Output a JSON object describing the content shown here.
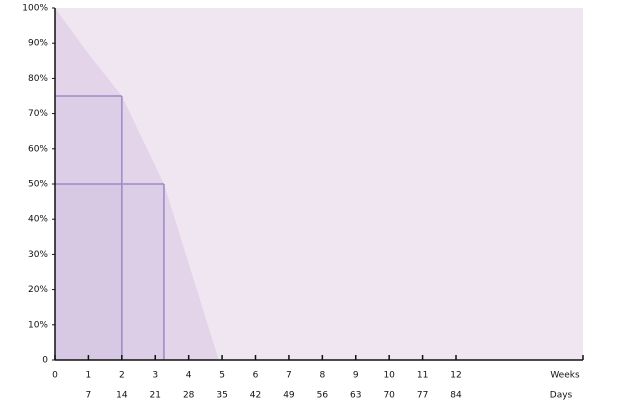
{
  "chart_data": {
    "type": "area",
    "x": [
      0,
      1,
      2,
      3.26,
      4.9
    ],
    "values": [
      100,
      87,
      75,
      50,
      0
    ],
    "color": "#e3d4ea",
    "background": "#efe6f1",
    "reference_points": [
      {
        "x": 2,
        "y": 75
      },
      {
        "x": 3.26,
        "y": 50
      }
    ],
    "reference_color": "#9d88c6",
    "xlim": [
      0,
      15.8
    ],
    "xticks": [
      0,
      1,
      2,
      3,
      4,
      5,
      6,
      7,
      8,
      9,
      10,
      11,
      12
    ],
    "xlabel": "Weeks",
    "x2lim": [
      0,
      110.6
    ],
    "x2ticks": [
      7,
      14,
      21,
      28,
      35,
      42,
      49,
      56,
      63,
      70,
      77,
      84
    ],
    "x2label": "Days",
    "ylim": [
      0,
      100
    ],
    "yticks": [
      0,
      {
        "value": 10,
        "label": "10%"
      },
      {
        "value": 20,
        "label": "20%"
      },
      {
        "value": 30,
        "label": "30%"
      },
      {
        "value": 40,
        "label": "40%"
      },
      {
        "value": 50,
        "label": "50%"
      },
      {
        "value": 60,
        "label": "60%"
      },
      {
        "value": 70,
        "label": "70%"
      },
      {
        "value": 80,
        "label": "80%"
      },
      {
        "value": 90,
        "label": "90%"
      },
      {
        "value": 100,
        "label": "100%"
      }
    ]
  }
}
